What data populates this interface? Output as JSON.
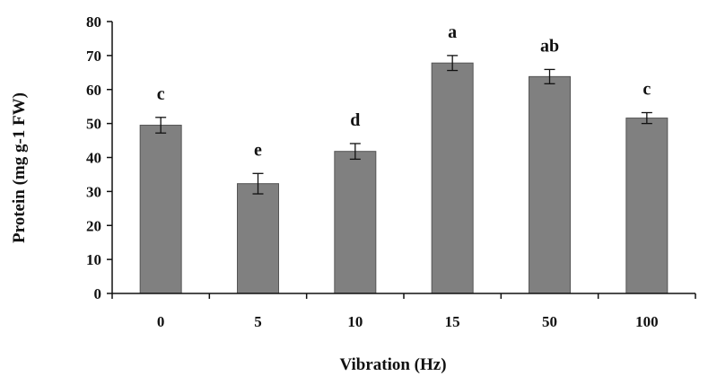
{
  "chart_data": {
    "type": "bar",
    "title": "",
    "xlabel": "Vibration (Hz)",
    "ylabel": "Protein (mg g-1 FW)",
    "categories": [
      "0",
      "5",
      "10",
      "15",
      "50",
      "100"
    ],
    "series": [
      {
        "values": [
          49.5,
          32.3,
          41.8,
          67.8,
          63.8,
          51.6
        ],
        "errors": [
          2.3,
          3.0,
          2.3,
          2.2,
          2.1,
          1.6
        ],
        "significance": [
          "c",
          "e",
          "d",
          "a",
          "ab",
          "c"
        ]
      }
    ],
    "yticks": [
      "0",
      "10",
      "20",
      "30",
      "40",
      "50",
      "60",
      "70",
      "80"
    ],
    "ylim": [
      0,
      80
    ],
    "grid": false,
    "legend": "none",
    "bar_color": "#808080",
    "bar_edge_color": "#555555"
  }
}
